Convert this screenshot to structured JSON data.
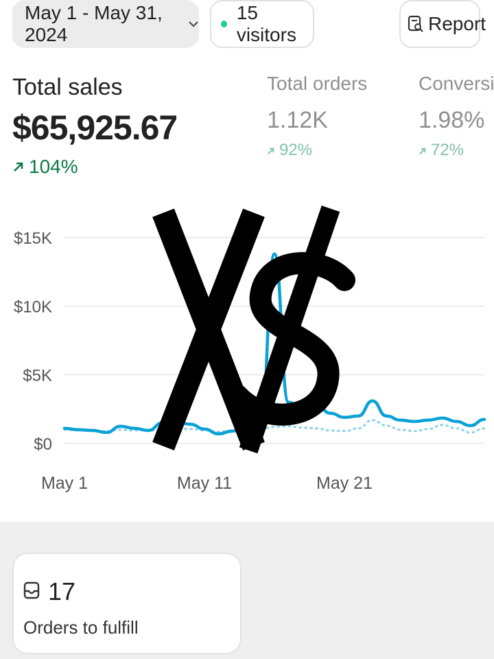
{
  "toolbar": {
    "date_range": "May 1 - May 31, 2024",
    "visitors": "15 visitors",
    "report": "Report"
  },
  "metrics": {
    "total_sales": {
      "label": "Total sales",
      "value": "$65,925.67",
      "change": "104%"
    },
    "total_orders": {
      "label": "Total orders",
      "value": "1.12K",
      "change": "92%"
    },
    "conversion": {
      "label": "Conversion",
      "value": "1.98%",
      "change": "72%"
    }
  },
  "colors": {
    "accent_line": "#0aa1d6",
    "comparison_line": "#8fd0ea",
    "positive": "#0e7a47",
    "positive_muted": "#7fc4a6"
  },
  "overlay_glyph": "X$",
  "chart_data": {
    "type": "line",
    "title": "",
    "xlabel": "",
    "ylabel": "",
    "ylim": [
      0,
      15000
    ],
    "y_ticks": [
      "$0",
      "$5K",
      "$10K",
      "$15K"
    ],
    "y_tick_values": [
      0,
      5000,
      10000,
      15000
    ],
    "x_ticks": [
      "May 1",
      "May 11",
      "May 21"
    ],
    "x_tick_days": [
      1,
      11,
      21
    ],
    "x_days": [
      1,
      2,
      3,
      4,
      5,
      6,
      7,
      8,
      9,
      10,
      11,
      12,
      13,
      14,
      15,
      16,
      17,
      18,
      19,
      20,
      21,
      22,
      23,
      24,
      25,
      26,
      27,
      28,
      29,
      30,
      31
    ],
    "series": [
      {
        "values": [
          1100,
          1000,
          950,
          800,
          1250,
          1100,
          950,
          1500,
          1550,
          1400,
          1050,
          700,
          900,
          1300,
          1150,
          13800,
          3000,
          2500,
          2800,
          2200,
          1900,
          2000,
          3100,
          2000,
          1700,
          1600,
          1700,
          1850,
          1600,
          1300,
          1750
        ]
      },
      {
        "values": [
          1000,
          950,
          900,
          900,
          1000,
          950,
          950,
          1000,
          1100,
          1050,
          950,
          850,
          950,
          1000,
          1050,
          1200,
          1250,
          1150,
          1100,
          950,
          900,
          1100,
          1700,
          1300,
          1000,
          900,
          1050,
          1350,
          1100,
          800,
          1100
        ]
      }
    ]
  },
  "orders_card": {
    "count": "17",
    "caption": "Orders to fulfill"
  }
}
